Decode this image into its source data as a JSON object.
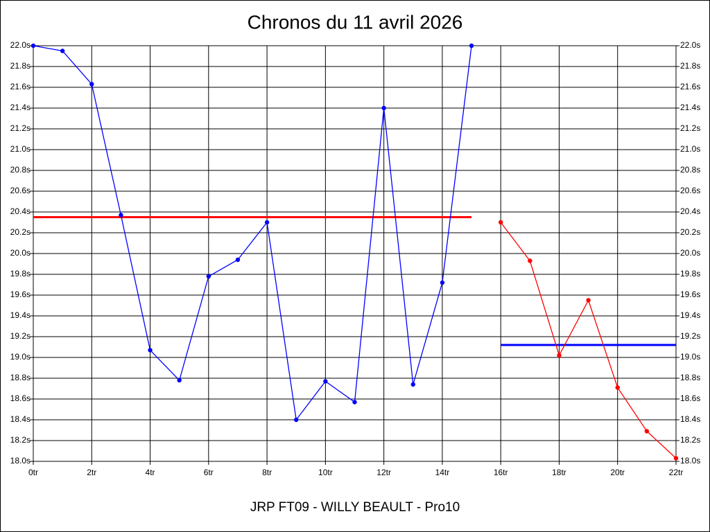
{
  "chart_data": {
    "type": "line",
    "title": "Chronos du 11 avril 2026",
    "x_label": "JRP FT09 - WILLY BEAULT - Pro10",
    "series": [
      {
        "color": "#0000ff",
        "x": [
          0,
          1,
          2,
          3,
          4,
          5,
          6,
          7,
          8,
          9,
          10,
          11,
          12,
          13,
          14,
          15
        ],
        "values": [
          22.0,
          21.95,
          21.63,
          20.37,
          19.07,
          18.78,
          19.78,
          19.94,
          20.3,
          18.4,
          18.77,
          18.57,
          21.4,
          18.74,
          19.72,
          22.0
        ]
      },
      {
        "color": "#ff0000",
        "x": [
          16,
          17,
          18,
          19,
          20,
          21,
          22
        ],
        "values": [
          20.3,
          19.93,
          19.02,
          19.55,
          18.71,
          18.29,
          18.03
        ]
      }
    ],
    "reference_lines": [
      {
        "color": "#ff0000",
        "value": 20.35,
        "xrange": [
          0,
          15
        ]
      },
      {
        "color": "#0000ff",
        "value": 19.12,
        "xrange": [
          16,
          22
        ]
      }
    ],
    "xlim": [
      0,
      22
    ],
    "xticks": [
      {
        "value": 0,
        "label": "0tr"
      },
      {
        "value": 2,
        "label": "2tr"
      },
      {
        "value": 4,
        "label": "4tr"
      },
      {
        "value": 6,
        "label": "6tr"
      },
      {
        "value": 8,
        "label": "8tr"
      },
      {
        "value": 10,
        "label": "10tr"
      },
      {
        "value": 12,
        "label": "12tr"
      },
      {
        "value": 14,
        "label": "14tr"
      },
      {
        "value": 16,
        "label": "16tr"
      },
      {
        "value": 18,
        "label": "18tr"
      },
      {
        "value": 20,
        "label": "20tr"
      },
      {
        "value": 22,
        "label": "22tr"
      }
    ],
    "ylim": [
      18.0,
      22.0
    ],
    "yticks": [
      {
        "value": 18.0,
        "label": "18.0s"
      },
      {
        "value": 18.2,
        "label": "18.2s"
      },
      {
        "value": 18.4,
        "label": "18.4s"
      },
      {
        "value": 18.6,
        "label": "18.6s"
      },
      {
        "value": 18.8,
        "label": "18.8s"
      },
      {
        "value": 19.0,
        "label": "19.0s"
      },
      {
        "value": 19.2,
        "label": "19.2s"
      },
      {
        "value": 19.4,
        "label": "19.4s"
      },
      {
        "value": 19.6,
        "label": "19.6s"
      },
      {
        "value": 19.8,
        "label": "19.8s"
      },
      {
        "value": 20.0,
        "label": "20.0s"
      },
      {
        "value": 20.2,
        "label": "20.2s"
      },
      {
        "value": 20.4,
        "label": "20.4s"
      },
      {
        "value": 20.6,
        "label": "20.6s"
      },
      {
        "value": 20.8,
        "label": "20.8s"
      },
      {
        "value": 21.0,
        "label": "21.0s"
      },
      {
        "value": 21.2,
        "label": "21.2s"
      },
      {
        "value": 21.4,
        "label": "21.4s"
      },
      {
        "value": 21.6,
        "label": "21.6s"
      },
      {
        "value": 21.8,
        "label": "21.8s"
      },
      {
        "value": 22.0,
        "label": "22.0s"
      }
    ],
    "grid": true
  }
}
